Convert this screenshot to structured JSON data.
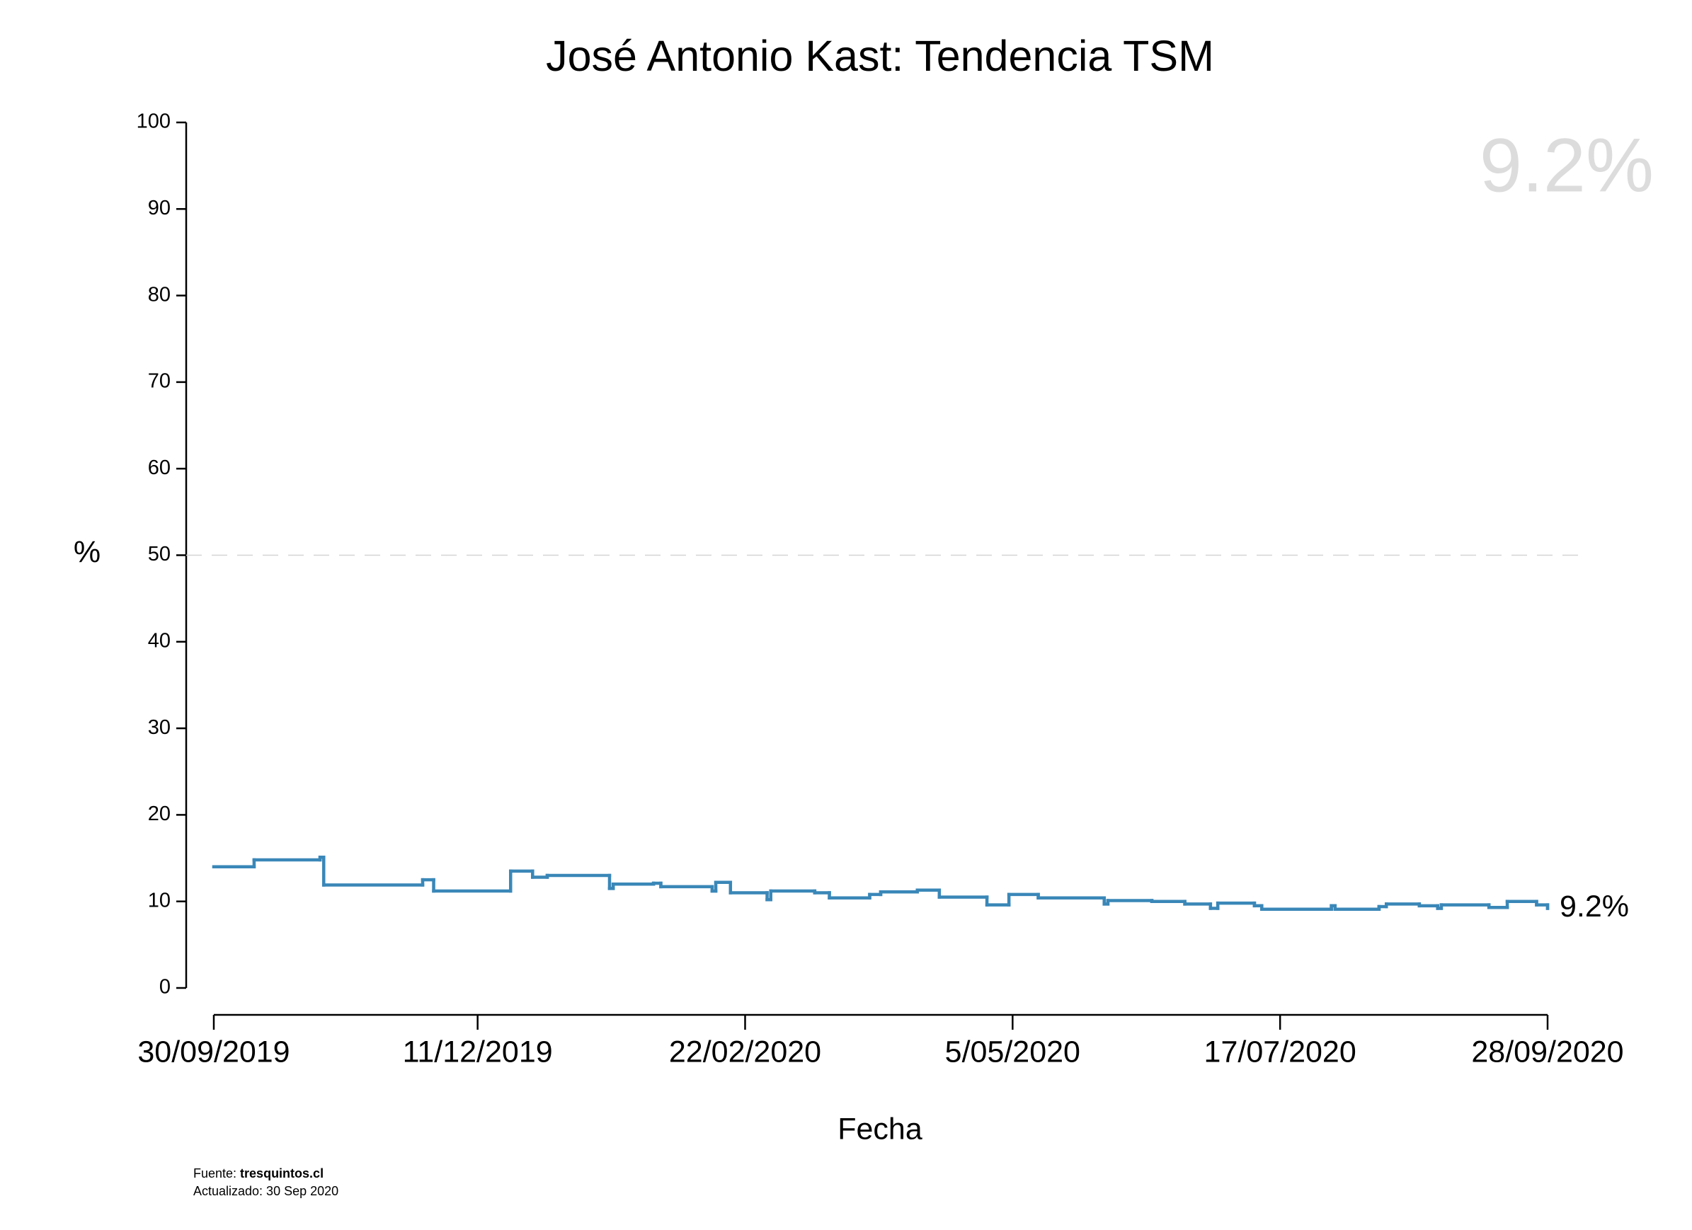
{
  "chart_data": {
    "type": "step",
    "title": "José Antonio Kast: Tendencia TSM",
    "x_label": "Fecha",
    "y_label": "%",
    "x": [
      "2019-09-30",
      "2019-10-11",
      "2019-10-29",
      "2019-10-30",
      "2019-11-26",
      "2019-11-29",
      "2019-12-20",
      "2019-12-26",
      "2019-12-30",
      "2020-01-16",
      "2020-01-17",
      "2020-01-28",
      "2020-01-30",
      "2020-02-13",
      "2020-02-14",
      "2020-02-18",
      "2020-02-28",
      "2020-02-29",
      "2020-03-12",
      "2020-03-16",
      "2020-03-27",
      "2020-03-30",
      "2020-04-09",
      "2020-04-15",
      "2020-04-28",
      "2020-05-04",
      "2020-05-12",
      "2020-05-30",
      "2020-05-31",
      "2020-06-12",
      "2020-06-21",
      "2020-06-28",
      "2020-06-30",
      "2020-07-10",
      "2020-07-12",
      "2020-07-31",
      "2020-08-01",
      "2020-08-13",
      "2020-08-15",
      "2020-08-24",
      "2020-08-29",
      "2020-08-30",
      "2020-09-12",
      "2020-09-17",
      "2020-09-25",
      "2020-09-28"
    ],
    "values": [
      14.0,
      14.8,
      15.1,
      11.9,
      12.5,
      11.2,
      13.5,
      12.8,
      13.0,
      11.5,
      12.0,
      12.1,
      11.7,
      11.2,
      12.2,
      11.0,
      10.2,
      11.2,
      11.0,
      10.4,
      10.8,
      11.1,
      11.3,
      10.5,
      9.6,
      10.8,
      10.4,
      9.7,
      10.1,
      10.0,
      9.7,
      9.2,
      9.8,
      9.5,
      9.1,
      9.5,
      9.1,
      9.4,
      9.7,
      9.5,
      9.2,
      9.6,
      9.3,
      10.0,
      9.6,
      9.2
    ],
    "color": "#3a87b8",
    "ylim": [
      0,
      100
    ],
    "yticks": [
      0,
      10,
      20,
      30,
      40,
      50,
      60,
      70,
      80,
      90,
      100
    ],
    "xlim": [
      "2019-09-30",
      "2020-09-28"
    ],
    "xticks": [
      {
        "value": "2019-09-30",
        "label": "30/09/2019"
      },
      {
        "value": "2019-12-11",
        "label": "11/12/2019"
      },
      {
        "value": "2020-02-22",
        "label": "22/02/2020"
      },
      {
        "value": "2020-05-05",
        "label": "5/05/2020"
      },
      {
        "value": "2020-07-17",
        "label": "17/07/2020"
      },
      {
        "value": "2020-09-28",
        "label": "28/09/2020"
      }
    ],
    "reference_line": 50,
    "current_label": "9.2%",
    "watermark_label": "9.2%",
    "source_prefix": "Fuente: ",
    "source": "tresquintos.cl",
    "updated": "Actualizado: 30 Sep 2020"
  }
}
